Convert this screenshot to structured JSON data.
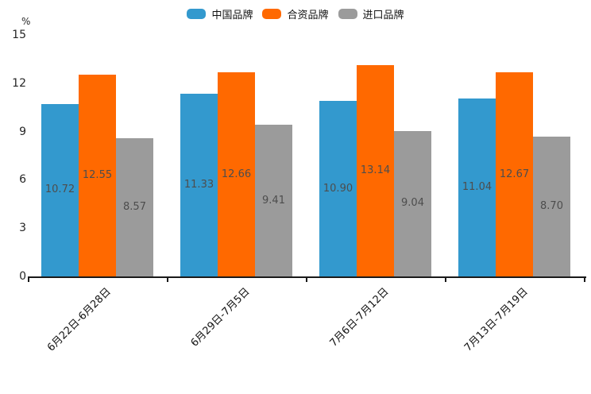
{
  "chart_data": {
    "type": "bar",
    "title": "",
    "unit_label": "%",
    "xlabel": "",
    "ylabel": "%",
    "categories": [
      "6月22日-6月28日",
      "6月29日-7月5日",
      "7月6日-7月12日",
      "7月13日-7月19日"
    ],
    "series": [
      {
        "name": "中国品牌",
        "color": "#3399CE",
        "values": [
          10.72,
          11.33,
          10.9,
          11.04
        ]
      },
      {
        "name": "合资品牌",
        "color": "#FF6900",
        "values": [
          12.55,
          12.66,
          13.14,
          12.67
        ]
      },
      {
        "name": "进口品牌",
        "color": "#9B9B9B",
        "values": [
          8.57,
          9.41,
          9.04,
          8.7
        ]
      }
    ],
    "ylim": [
      0,
      15
    ],
    "yticks": [
      0,
      3,
      6,
      9,
      12,
      15
    ],
    "legend_position": "top-center",
    "grid": false,
    "value_label_position": "inside-middle",
    "value_label_decimals": 2
  },
  "colors": {
    "axis": "#1a1a1a",
    "tick_text": "#262626",
    "bar_value_text": "#4d4d4d"
  }
}
